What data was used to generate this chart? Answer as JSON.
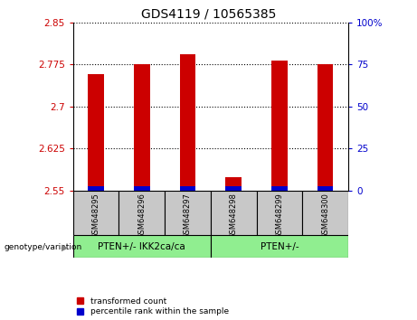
{
  "title": "GDS4119 / 10565385",
  "samples": [
    "GSM648295",
    "GSM648296",
    "GSM648297",
    "GSM648298",
    "GSM648299",
    "GSM648300"
  ],
  "red_values": [
    2.758,
    2.775,
    2.793,
    2.573,
    2.782,
    2.775
  ],
  "blue_heights": [
    0.008,
    0.008,
    0.008,
    0.008,
    0.008,
    0.008
  ],
  "y_min": 2.55,
  "y_max": 2.85,
  "y_ticks": [
    2.55,
    2.625,
    2.7,
    2.775,
    2.85
  ],
  "y_tick_labels": [
    "2.55",
    "2.625",
    "2.7",
    "2.775",
    "2.85"
  ],
  "right_y_ticks": [
    0,
    25,
    50,
    75,
    100
  ],
  "right_y_tick_labels": [
    "0",
    "25",
    "50",
    "75",
    "100%"
  ],
  "groups": [
    {
      "label": "PTEN+/- IKK2ca/ca",
      "start": 0,
      "end": 2,
      "color": "#90EE90"
    },
    {
      "label": "PTEN+/-",
      "start": 3,
      "end": 5,
      "color": "#90EE90"
    }
  ],
  "left_color": "#cc0000",
  "blue_color": "#0000cc",
  "tick_label_color_left": "#cc0000",
  "tick_label_color_right": "#0000cc",
  "legend_red_label": "transformed count",
  "legend_blue_label": "percentile rank within the sample",
  "bar_width": 0.35,
  "sample_area_color": "#c8c8c8"
}
